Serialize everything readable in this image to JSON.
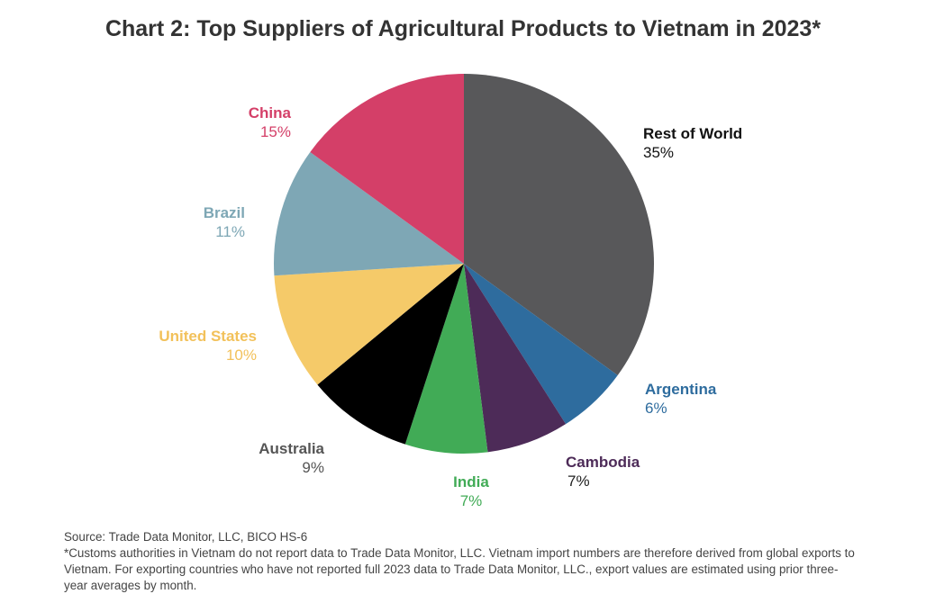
{
  "title": "Chart 2: Top Suppliers of Agricultural Products to Vietnam in 2023*",
  "chart_data": {
    "type": "pie",
    "title": "Chart 2: Top Suppliers of Agricultural Products to Vietnam in 2023*",
    "slices": [
      {
        "name": "Rest of World",
        "value": 35,
        "label": "35%",
        "color": "#58585a",
        "label_color": "#111111",
        "pct_color": "#111111"
      },
      {
        "name": "Argentina",
        "value": 6,
        "label": "6%",
        "color": "#2e6c9e",
        "label_color": "#2e6c9e",
        "pct_color": "#2e6c9e"
      },
      {
        "name": "Cambodia",
        "value": 7,
        "label": "7%",
        "color": "#4d2b58",
        "label_color": "#4d2b58",
        "pct_color": "#222222"
      },
      {
        "name": "India",
        "value": 7,
        "label": "7%",
        "color": "#41ab56",
        "label_color": "#41ab56",
        "pct_color": "#41ab56"
      },
      {
        "name": "Australia",
        "value": 9,
        "label": "9%",
        "color": "#000000",
        "label_color": "#555555",
        "pct_color": "#555555"
      },
      {
        "name": "United States",
        "value": 10,
        "label": "10%",
        "color": "#f5ca69",
        "label_color": "#f2c15a",
        "pct_color": "#f2c15a"
      },
      {
        "name": "Brazil",
        "value": 11,
        "label": "11%",
        "color": "#7ea7b5",
        "label_color": "#7ea7b5",
        "pct_color": "#7ea7b5"
      },
      {
        "name": "China",
        "value": 15,
        "label": "15%",
        "color": "#d43f68",
        "label_color": "#d43f68",
        "pct_color": "#d43f68"
      }
    ],
    "start_angle": "12 o'clock",
    "direction": "clockwise",
    "legend": "none"
  },
  "notes": {
    "source": "Source: Trade Data Monitor, LLC, BICO HS-6",
    "footnote": "*Customs authorities in Vietnam do not report data to Trade Data Monitor, LLC. Vietnam import numbers are therefore derived from global exports to Vietnam. For exporting countries who have not reported full 2023 data to Trade Data Monitor, LLC., export values are estimated using prior three-year averages by month."
  }
}
